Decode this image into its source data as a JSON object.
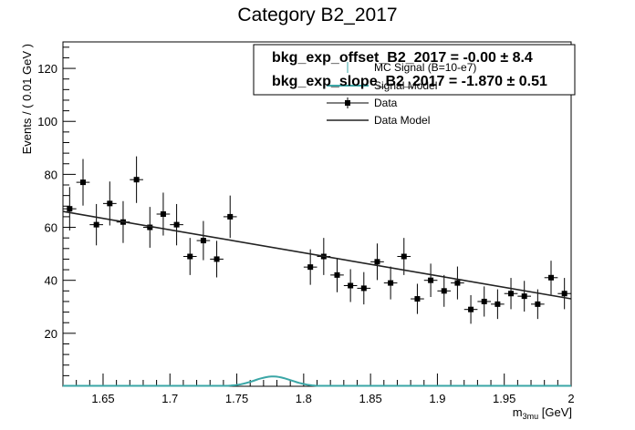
{
  "chart_data": {
    "type": "scatter",
    "title": "Category B2_2017",
    "xlabel": "m",
    "xlabel_sub": "3mu",
    "xlabel_unit": " [GeV]",
    "ylabel": "Events / ( 0.01 GeV )",
    "xlim": [
      1.62,
      2.0
    ],
    "ylim": [
      0,
      130
    ],
    "x_ticks": [
      1.65,
      1.7,
      1.75,
      1.8,
      1.85,
      1.9,
      1.95,
      2.0
    ],
    "x_tick_labels": [
      "1.65",
      "1.7",
      "1.75",
      "1.8",
      "1.85",
      "1.9",
      "1.95",
      "2"
    ],
    "y_ticks": [
      20,
      40,
      60,
      80,
      100,
      120
    ],
    "y_tick_labels": [
      "20",
      "40",
      "60",
      "80",
      "100",
      "120"
    ],
    "grid": false,
    "legend_position": "top-right",
    "legend": [
      {
        "label": "MC Signal (B=10-e7)",
        "style": "errorbar-teal"
      },
      {
        "label": "Signal Model",
        "style": "line-teal"
      },
      {
        "label": "Data",
        "style": "marker"
      },
      {
        "label": "Data Model",
        "style": "line-black"
      }
    ],
    "stats": [
      "bkg_exp_offset_B2_2017 = -0.00 ± 8.4",
      "bkg_exp_slope_B2_2017 = -1.870 ± 0.51"
    ],
    "series": [
      {
        "name": "Data",
        "x": [
          1.625,
          1.635,
          1.645,
          1.655,
          1.665,
          1.675,
          1.685,
          1.695,
          1.705,
          1.715,
          1.725,
          1.735,
          1.745,
          1.805,
          1.815,
          1.825,
          1.835,
          1.845,
          1.855,
          1.865,
          1.875,
          1.885,
          1.895,
          1.905,
          1.915,
          1.925,
          1.935,
          1.945,
          1.955,
          1.965,
          1.975,
          1.985,
          1.995
        ],
        "y": [
          67,
          77,
          61,
          69,
          62,
          78,
          60,
          65,
          61,
          49,
          55,
          48,
          64,
          45,
          49,
          42,
          38,
          37,
          47,
          39,
          49,
          33,
          40,
          36,
          39,
          29,
          32,
          31,
          35,
          34,
          31,
          41,
          35
        ],
        "yerr": [
          8.2,
          8.8,
          7.8,
          8.3,
          7.9,
          8.8,
          7.7,
          8.1,
          7.8,
          7.0,
          7.4,
          6.9,
          8.0,
          6.7,
          7.0,
          6.5,
          6.2,
          6.1,
          6.9,
          6.2,
          7.0,
          5.7,
          6.3,
          6.0,
          6.2,
          5.4,
          5.7,
          5.6,
          5.9,
          5.8,
          5.6,
          6.4,
          5.9
        ]
      },
      {
        "name": "Data Model",
        "type": "line",
        "x": [
          1.62,
          2.0
        ],
        "y": [
          66,
          33
        ]
      },
      {
        "name": "Signal Model",
        "type": "gaussian",
        "mean": 1.777,
        "sigma": 0.0135,
        "amplitude": 3.7
      }
    ]
  }
}
